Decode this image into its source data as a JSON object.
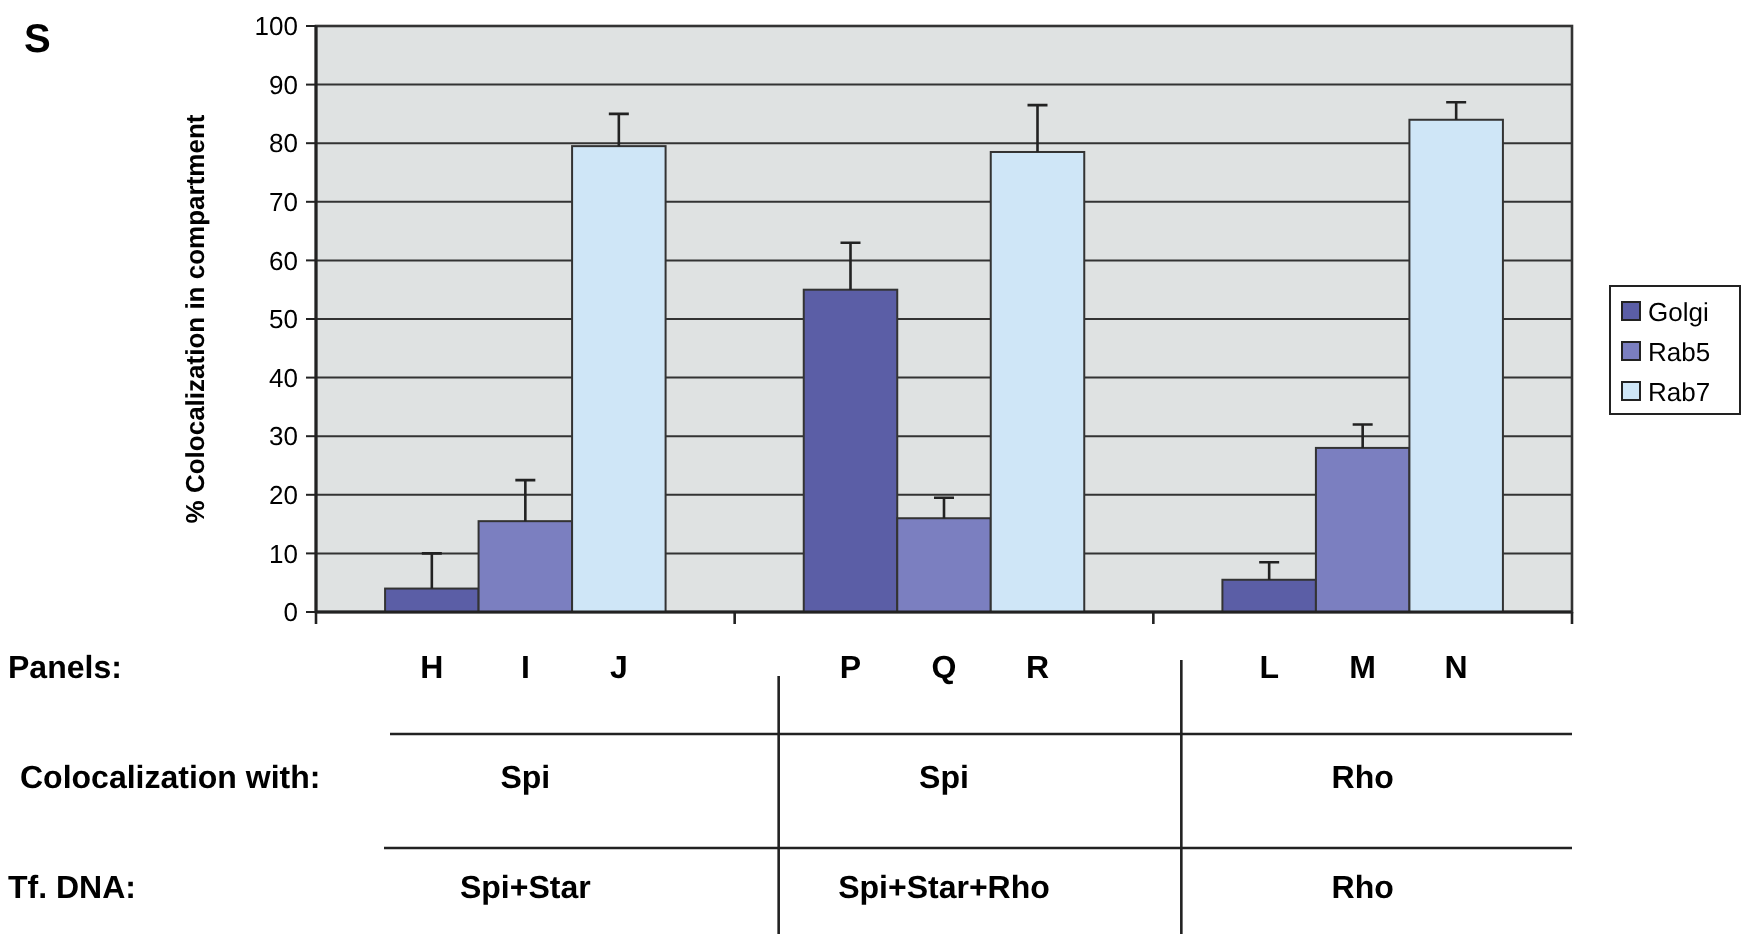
{
  "chart_data": {
    "type": "bar",
    "title": "S",
    "ylabel": "% Colocalization in compartment",
    "categories": [
      null,
      null,
      null
    ],
    "series": [
      {
        "name": "Golgi",
        "color": "#5b5ea6",
        "values": [
          4,
          55,
          5.5
        ],
        "errors": [
          [
            4,
            10
          ],
          [
            55,
            63
          ],
          [
            5.5,
            8.5
          ]
        ]
      },
      {
        "name": "Rab5",
        "color": "#7b7fc0",
        "values": [
          15.5,
          16,
          28
        ],
        "errors": [
          [
            15.5,
            22.5
          ],
          [
            16,
            19.5
          ],
          [
            28,
            32
          ]
        ]
      },
      {
        "name": "Rab7",
        "color": "#cfe6f7",
        "values": [
          79.5,
          78.5,
          84
        ],
        "errors": [
          [
            79.5,
            85
          ],
          [
            78.5,
            86.5
          ],
          [
            84,
            87
          ]
        ]
      }
    ],
    "ylim": [
      0,
      100
    ],
    "yticks": [
      0,
      10,
      20,
      30,
      40,
      50,
      60,
      70,
      80,
      90,
      100
    ],
    "grid": "y",
    "legend": "right",
    "annotations": [
      "Panels:",
      "H",
      "I",
      "J",
      "P",
      "Q",
      "R",
      "L",
      "M",
      "N",
      "Colocalization with:",
      "Spi",
      "Spi",
      "Rho",
      "Tf. DNA:",
      "Spi+Star",
      "Spi+Star+Rho",
      "Rho"
    ]
  }
}
